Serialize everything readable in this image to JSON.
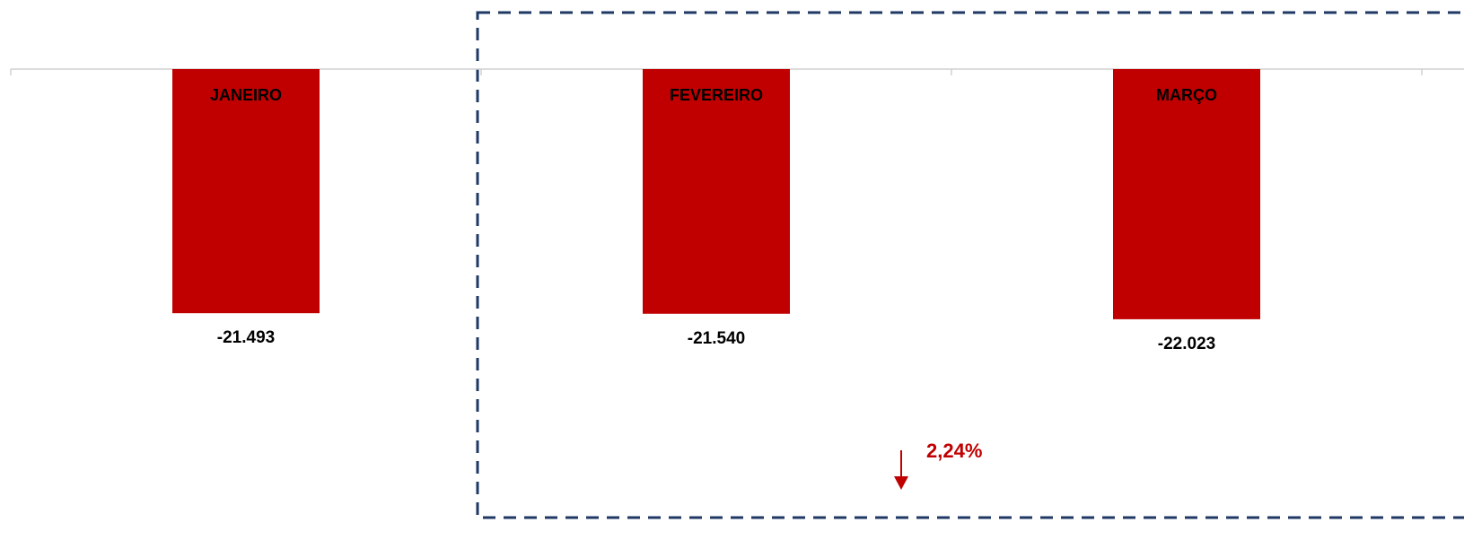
{
  "chart_data": {
    "type": "bar",
    "categories": [
      "JANEIRO",
      "FEVEREIRO",
      "MARÇO"
    ],
    "values": [
      -21493,
      -21540,
      -22023
    ],
    "value_labels": [
      "-21.493",
      "-21.540",
      "-22.023"
    ],
    "color": "#c00000",
    "ylim": [
      -41300,
      0
    ],
    "annotation": "2,24%"
  }
}
